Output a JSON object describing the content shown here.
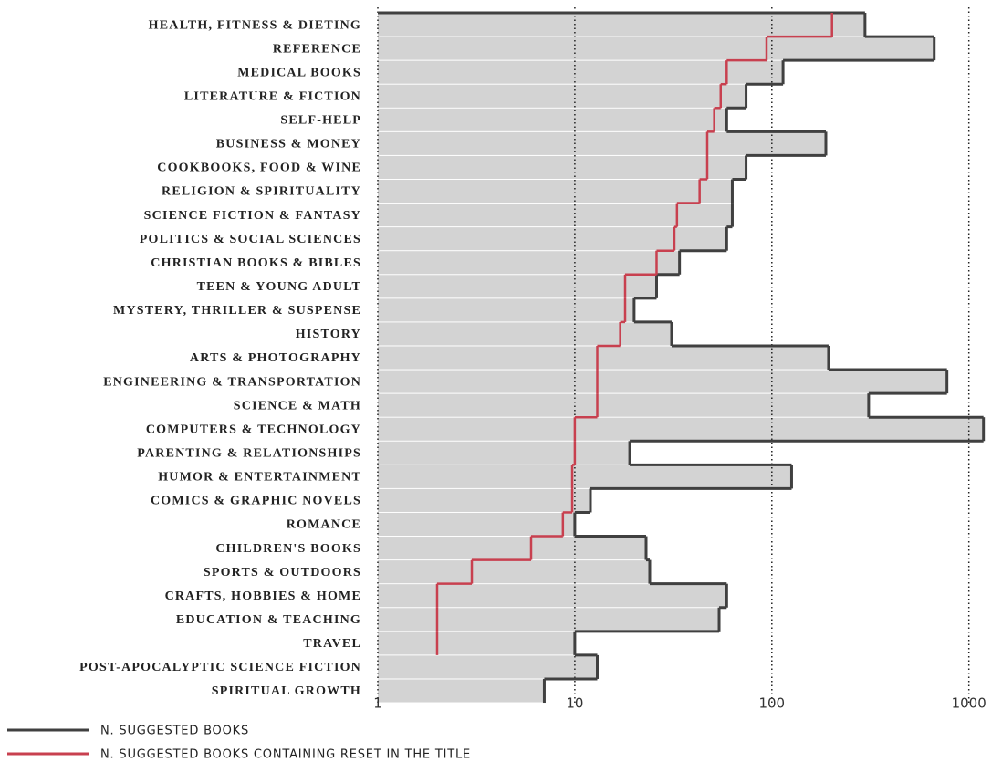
{
  "chart_data": {
    "type": "step-bar",
    "categories": [
      "HEALTH, FITNESS & DIETING",
      "REFERENCE",
      "MEDICAL BOOKS",
      "LITERATURE & FICTION",
      "SELF-HELP",
      "BUSINESS & MONEY",
      "COOKBOOKS, FOOD & WINE",
      "RELIGION & SPIRITUALITY",
      "SCIENCE FICTION & FANTASY",
      "POLITICS & SOCIAL SCIENCES",
      "CHRISTIAN BOOKS & BIBLES",
      "TEEN & YOUNG ADULT",
      "MYSTERY, THRILLER & SUSPENSE",
      "HISTORY",
      "ARTS & PHOTOGRAPHY",
      "ENGINEERING & TRANSPORTATION",
      "SCIENCE & MATH",
      "COMPUTERS & TECHNOLOGY",
      "PARENTING & RELATIONSHIPS",
      "HUMOR & ENTERTAINMENT",
      "COMICS & GRAPHIC NOVELS",
      "ROMANCE",
      "CHILDREN'S BOOKS",
      "SPORTS & OUTDOORS",
      "CRAFTS, HOBBIES & HOME",
      "EDUCATION & TEACHING",
      "TRAVEL",
      "POST-APOCALYPTIC SCIENCE FICTION",
      "SPIRITUAL GROWTH"
    ],
    "series": [
      {
        "name": "N. SUGGESTED BOOKS",
        "color": "#404040",
        "fill": "#d3d3d3",
        "values": [
          297,
          667,
          114,
          74,
          59,
          188,
          74,
          63,
          63,
          59,
          34,
          26,
          20,
          31,
          194,
          774,
          310,
          1186,
          19,
          126,
          12,
          10,
          23,
          24,
          59,
          54,
          10,
          13,
          7
        ]
      },
      {
        "name": "N. SUGGESTED BOOKS CONTAINING RESET IN THE TITLE",
        "color": "#c8404f",
        "values": [
          202,
          94,
          59,
          55,
          51,
          47,
          47,
          43,
          33,
          32,
          26,
          18,
          18,
          17,
          13,
          13,
          13,
          10,
          10,
          9.7,
          9.7,
          8.7,
          6,
          3,
          2,
          2,
          2,
          null,
          null
        ]
      }
    ],
    "xlim": [
      1,
      1190
    ],
    "xticks": [
      1,
      10,
      100,
      1000
    ],
    "log_x": true,
    "grid": true
  }
}
